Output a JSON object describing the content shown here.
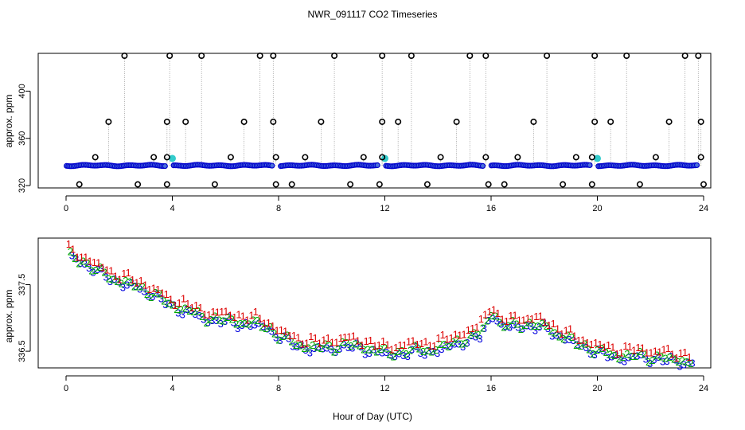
{
  "chart_data": [
    {
      "type": "scatter",
      "title": "NWR_091117  CO2 Timeseries",
      "ylabel": "approx. ppm",
      "xlabel": "",
      "xlim": [
        0,
        24
      ],
      "ylim": [
        318,
        432
      ],
      "xticks": [
        "0",
        "4",
        "8",
        "12",
        "16",
        "20",
        "24"
      ],
      "yticks": [
        "320",
        "360",
        "400"
      ],
      "baseline_ppm": 337,
      "calibration_outliers": [
        {
          "x": 0.5,
          "y": 321
        },
        {
          "x": 1.1,
          "y": 344
        },
        {
          "x": 1.6,
          "y": 374
        },
        {
          "x": 2.2,
          "y": 433
        },
        {
          "x": 2.7,
          "y": 321
        },
        {
          "x": 3.3,
          "y": 344
        },
        {
          "x": 3.8,
          "y": 374
        },
        {
          "x": 3.9,
          "y": 433
        },
        {
          "x": 3.8,
          "y": 321
        },
        {
          "x": 3.8,
          "y": 344
        },
        {
          "x": 4.5,
          "y": 374
        },
        {
          "x": 5.1,
          "y": 433
        },
        {
          "x": 5.6,
          "y": 321
        },
        {
          "x": 6.2,
          "y": 344
        },
        {
          "x": 6.7,
          "y": 374
        },
        {
          "x": 7.3,
          "y": 433
        },
        {
          "x": 7.8,
          "y": 433
        },
        {
          "x": 7.8,
          "y": 374
        },
        {
          "x": 7.9,
          "y": 344
        },
        {
          "x": 7.9,
          "y": 321
        },
        {
          "x": 8.5,
          "y": 321
        },
        {
          "x": 9.0,
          "y": 344
        },
        {
          "x": 9.6,
          "y": 374
        },
        {
          "x": 10.1,
          "y": 433
        },
        {
          "x": 10.7,
          "y": 321
        },
        {
          "x": 11.2,
          "y": 344
        },
        {
          "x": 11.8,
          "y": 321
        },
        {
          "x": 11.9,
          "y": 374
        },
        {
          "x": 11.9,
          "y": 433
        },
        {
          "x": 11.9,
          "y": 344
        },
        {
          "x": 12.5,
          "y": 374
        },
        {
          "x": 13.0,
          "y": 433
        },
        {
          "x": 13.6,
          "y": 321
        },
        {
          "x": 14.1,
          "y": 344
        },
        {
          "x": 14.7,
          "y": 374
        },
        {
          "x": 15.2,
          "y": 433
        },
        {
          "x": 15.8,
          "y": 433
        },
        {
          "x": 15.8,
          "y": 344
        },
        {
          "x": 15.9,
          "y": 321
        },
        {
          "x": 16.5,
          "y": 321
        },
        {
          "x": 17.0,
          "y": 344
        },
        {
          "x": 17.6,
          "y": 374
        },
        {
          "x": 18.1,
          "y": 433
        },
        {
          "x": 18.7,
          "y": 321
        },
        {
          "x": 19.2,
          "y": 344
        },
        {
          "x": 19.8,
          "y": 321
        },
        {
          "x": 19.8,
          "y": 344
        },
        {
          "x": 19.9,
          "y": 374
        },
        {
          "x": 19.9,
          "y": 433
        },
        {
          "x": 20.5,
          "y": 374
        },
        {
          "x": 21.1,
          "y": 433
        },
        {
          "x": 21.6,
          "y": 321
        },
        {
          "x": 22.2,
          "y": 344
        },
        {
          "x": 22.7,
          "y": 374
        },
        {
          "x": 23.3,
          "y": 433
        },
        {
          "x": 23.8,
          "y": 433
        },
        {
          "x": 23.9,
          "y": 374
        },
        {
          "x": 23.9,
          "y": 344
        },
        {
          "x": 24.0,
          "y": 321
        }
      ],
      "cyan_markers": [
        {
          "x": 4.0,
          "y": 343
        },
        {
          "x": 12.0,
          "y": 343
        },
        {
          "x": 20.0,
          "y": 343
        }
      ],
      "colors": {
        "ring": "#000000",
        "ambient": "#0000cc",
        "ambient_fill": "#4a70d8",
        "highlight": "#33cccc",
        "stem": "#999999"
      }
    },
    {
      "type": "scatter",
      "title": "",
      "xlabel": "Hour of Day (UTC)",
      "ylabel": "approx. ppm",
      "xlim": [
        0,
        24
      ],
      "ylim": [
        336.25,
        338.2
      ],
      "xticks": [
        "0",
        "4",
        "8",
        "12",
        "16",
        "20",
        "24"
      ],
      "yticks": [
        "336.5",
        "337.5"
      ],
      "series": [
        {
          "name": "1",
          "color": "#dd0000",
          "offset": 0.07
        },
        {
          "name": "2",
          "color": "#00aa00",
          "offset": -0.03
        },
        {
          "name": "3",
          "color": "#0000dd",
          "offset": -0.06
        }
      ],
      "trend": {
        "x": [
          0,
          0.5,
          1,
          1.5,
          2,
          2.5,
          3,
          3.5,
          4,
          4.5,
          5,
          5.5,
          6,
          6.5,
          7,
          7.5,
          8,
          8.5,
          9,
          9.5,
          10,
          10.5,
          11,
          11.5,
          12,
          12.5,
          13,
          13.5,
          14,
          14.5,
          15,
          15.5,
          16,
          16.3,
          16.6,
          17,
          17.5,
          18,
          18.5,
          19,
          19.5,
          20,
          20.5,
          21,
          21.5,
          22,
          22.5,
          23,
          23.5,
          24
        ],
        "y": [
          337.98,
          337.9,
          337.76,
          337.67,
          337.57,
          337.52,
          337.44,
          337.32,
          337.2,
          337.16,
          337.05,
          337.02,
          336.99,
          336.97,
          336.95,
          336.9,
          336.75,
          336.65,
          336.6,
          336.58,
          336.6,
          336.63,
          336.6,
          336.56,
          336.5,
          336.52,
          336.55,
          336.55,
          336.58,
          336.65,
          336.72,
          336.78,
          337.15,
          336.92,
          336.9,
          336.95,
          336.92,
          336.9,
          336.78,
          336.68,
          336.6,
          336.52,
          336.48,
          336.45,
          336.47,
          336.44,
          336.42,
          336.4,
          336.38,
          336.4
        ]
      }
    }
  ]
}
